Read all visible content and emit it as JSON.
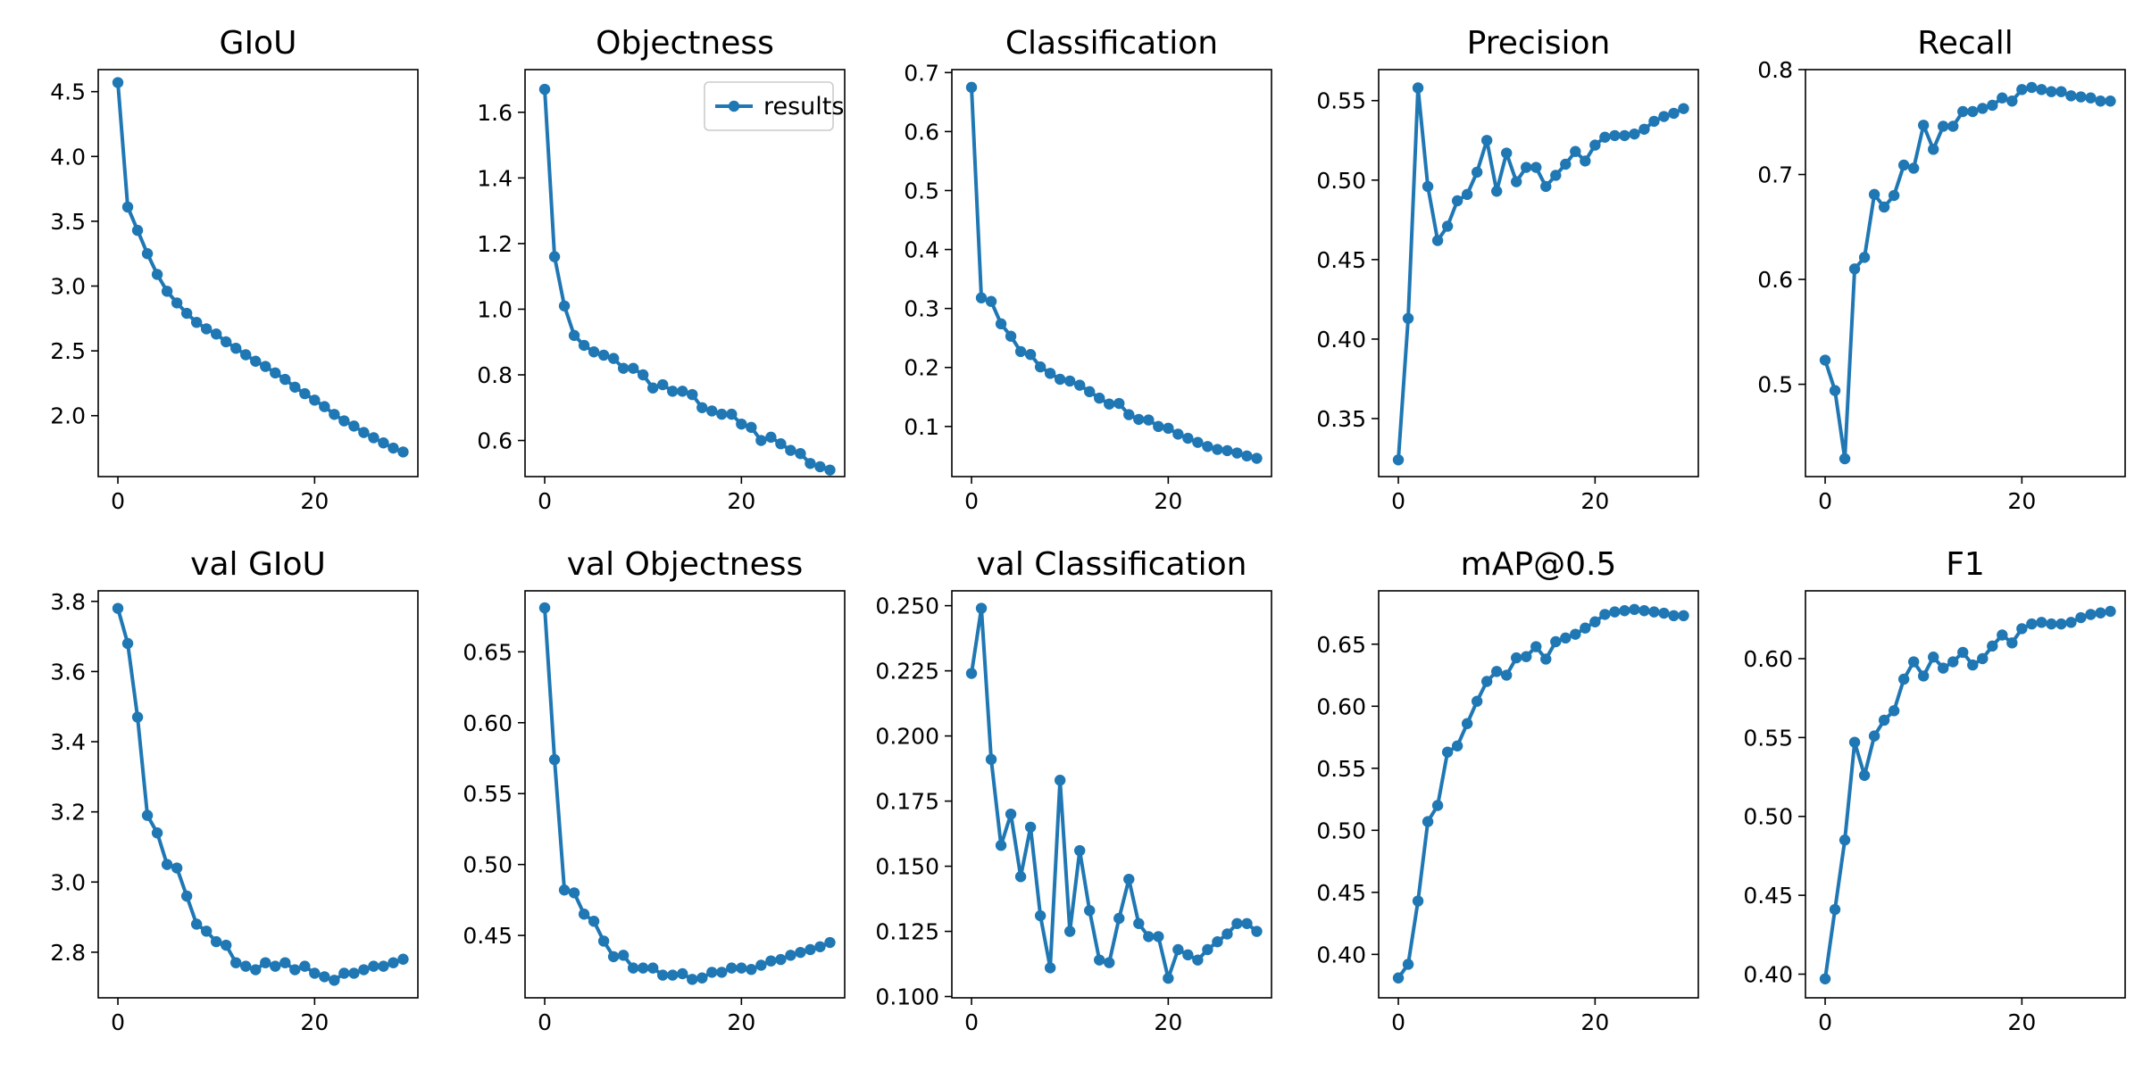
{
  "colors": {
    "series": "#1f77b4",
    "axes": "#000000",
    "legend_border": "#cccccc",
    "background": "#ffffff"
  },
  "chart_data": [
    {
      "type": "line",
      "title": "GIoU",
      "xlabel": "",
      "ylabel": "",
      "xlim": [
        -2,
        30.5
      ],
      "ylim": [
        1.53,
        4.67
      ],
      "xticks": [
        0,
        20
      ],
      "yticks": [
        2.0,
        2.5,
        3.0,
        3.5,
        4.0,
        4.5
      ],
      "ytick_decimals": 1,
      "x": [
        0,
        1,
        2,
        3,
        4,
        5,
        6,
        7,
        8,
        9,
        10,
        11,
        12,
        13,
        14,
        15,
        16,
        17,
        18,
        19,
        20,
        21,
        22,
        23,
        24,
        25,
        26,
        27,
        28,
        29
      ],
      "series": [
        {
          "values": [
            4.57,
            3.61,
            3.43,
            3.25,
            3.09,
            2.96,
            2.87,
            2.79,
            2.72,
            2.67,
            2.63,
            2.57,
            2.52,
            2.47,
            2.42,
            2.38,
            2.33,
            2.28,
            2.22,
            2.17,
            2.12,
            2.07,
            2.01,
            1.96,
            1.92,
            1.87,
            1.83,
            1.79,
            1.75,
            1.72
          ]
        }
      ]
    },
    {
      "type": "line",
      "title": "Objectness",
      "xlabel": "",
      "ylabel": "",
      "xlim": [
        -2,
        30.5
      ],
      "ylim": [
        0.49,
        1.73
      ],
      "xticks": [
        0,
        20
      ],
      "yticks": [
        0.6,
        0.8,
        1.0,
        1.2,
        1.4,
        1.6
      ],
      "ytick_decimals": 1,
      "legend": {
        "labels": [
          "results"
        ],
        "loc": "upper right"
      },
      "x": [
        0,
        1,
        2,
        3,
        4,
        5,
        6,
        7,
        8,
        9,
        10,
        11,
        12,
        13,
        14,
        15,
        16,
        17,
        18,
        19,
        20,
        21,
        22,
        23,
        24,
        25,
        26,
        27,
        28,
        29
      ],
      "series": [
        {
          "name": "results",
          "values": [
            1.67,
            1.16,
            1.01,
            0.92,
            0.89,
            0.87,
            0.86,
            0.85,
            0.82,
            0.82,
            0.8,
            0.76,
            0.77,
            0.75,
            0.75,
            0.74,
            0.7,
            0.69,
            0.68,
            0.68,
            0.65,
            0.64,
            0.6,
            0.61,
            0.59,
            0.57,
            0.56,
            0.53,
            0.52,
            0.51
          ]
        }
      ]
    },
    {
      "type": "line",
      "title": "Classification",
      "xlabel": "",
      "ylabel": "",
      "xlim": [
        -2,
        30.5
      ],
      "ylim": [
        0.015,
        0.705
      ],
      "xticks": [
        0,
        20
      ],
      "yticks": [
        0.1,
        0.2,
        0.3,
        0.4,
        0.5,
        0.6,
        0.7
      ],
      "ytick_decimals": 1,
      "x": [
        0,
        1,
        2,
        3,
        4,
        5,
        6,
        7,
        8,
        9,
        10,
        11,
        12,
        13,
        14,
        15,
        16,
        17,
        18,
        19,
        20,
        21,
        22,
        23,
        24,
        25,
        26,
        27,
        28,
        29
      ],
      "series": [
        {
          "values": [
            0.675,
            0.318,
            0.312,
            0.274,
            0.253,
            0.227,
            0.222,
            0.201,
            0.19,
            0.18,
            0.177,
            0.17,
            0.159,
            0.148,
            0.138,
            0.139,
            0.12,
            0.112,
            0.111,
            0.1,
            0.097,
            0.087,
            0.08,
            0.073,
            0.066,
            0.061,
            0.059,
            0.055,
            0.05,
            0.046
          ]
        }
      ]
    },
    {
      "type": "line",
      "title": "Precision",
      "xlabel": "",
      "ylabel": "",
      "xlim": [
        -2,
        30.5
      ],
      "ylim": [
        0.3135,
        0.5695
      ],
      "xticks": [
        0,
        20
      ],
      "yticks": [
        0.35,
        0.4,
        0.45,
        0.5,
        0.55
      ],
      "ytick_decimals": 2,
      "x": [
        0,
        1,
        2,
        3,
        4,
        5,
        6,
        7,
        8,
        9,
        10,
        11,
        12,
        13,
        14,
        15,
        16,
        17,
        18,
        19,
        20,
        21,
        22,
        23,
        24,
        25,
        26,
        27,
        28,
        29
      ],
      "series": [
        {
          "values": [
            0.324,
            0.413,
            0.558,
            0.496,
            0.462,
            0.471,
            0.487,
            0.491,
            0.505,
            0.525,
            0.493,
            0.517,
            0.499,
            0.508,
            0.508,
            0.496,
            0.503,
            0.51,
            0.518,
            0.512,
            0.522,
            0.527,
            0.528,
            0.528,
            0.529,
            0.532,
            0.537,
            0.54,
            0.542,
            0.545
          ]
        }
      ]
    },
    {
      "type": "line",
      "title": "Recall",
      "xlabel": "",
      "ylabel": "",
      "xlim": [
        -2,
        30.5
      ],
      "ylim": [
        0.412,
        0.8
      ],
      "xticks": [
        0,
        20
      ],
      "yticks": [
        0.5,
        0.6,
        0.7,
        0.8
      ],
      "ytick_decimals": 1,
      "x": [
        0,
        1,
        2,
        3,
        4,
        5,
        6,
        7,
        8,
        9,
        10,
        11,
        12,
        13,
        14,
        15,
        16,
        17,
        18,
        19,
        20,
        21,
        22,
        23,
        24,
        25,
        26,
        27,
        28,
        29
      ],
      "series": [
        {
          "values": [
            0.523,
            0.494,
            0.429,
            0.61,
            0.621,
            0.681,
            0.669,
            0.68,
            0.709,
            0.706,
            0.747,
            0.724,
            0.746,
            0.746,
            0.76,
            0.76,
            0.763,
            0.766,
            0.773,
            0.77,
            0.781,
            0.783,
            0.781,
            0.779,
            0.779,
            0.775,
            0.774,
            0.773,
            0.77,
            0.77
          ]
        }
      ]
    },
    {
      "type": "line",
      "title": "val GIoU",
      "xlabel": "",
      "ylabel": "",
      "xlim": [
        -2,
        30.5
      ],
      "ylim": [
        2.67,
        3.83
      ],
      "xticks": [
        0,
        20
      ],
      "yticks": [
        2.8,
        3.0,
        3.2,
        3.4,
        3.6,
        3.8
      ],
      "ytick_decimals": 1,
      "x": [
        0,
        1,
        2,
        3,
        4,
        5,
        6,
        7,
        8,
        9,
        10,
        11,
        12,
        13,
        14,
        15,
        16,
        17,
        18,
        19,
        20,
        21,
        22,
        23,
        24,
        25,
        26,
        27,
        28,
        29
      ],
      "series": [
        {
          "values": [
            3.78,
            3.68,
            3.47,
            3.19,
            3.14,
            3.05,
            3.04,
            2.96,
            2.88,
            2.86,
            2.83,
            2.82,
            2.77,
            2.76,
            2.75,
            2.77,
            2.76,
            2.77,
            2.75,
            2.76,
            2.74,
            2.73,
            2.72,
            2.74,
            2.74,
            2.75,
            2.76,
            2.76,
            2.77,
            2.78
          ]
        }
      ]
    },
    {
      "type": "line",
      "title": "val Objectness",
      "xlabel": "",
      "ylabel": "",
      "xlim": [
        -2,
        30.5
      ],
      "ylim": [
        0.406,
        0.693
      ],
      "xticks": [
        0,
        20
      ],
      "yticks": [
        0.45,
        0.5,
        0.55,
        0.6,
        0.65
      ],
      "ytick_decimals": 2,
      "x": [
        0,
        1,
        2,
        3,
        4,
        5,
        6,
        7,
        8,
        9,
        10,
        11,
        12,
        13,
        14,
        15,
        16,
        17,
        18,
        19,
        20,
        21,
        22,
        23,
        24,
        25,
        26,
        27,
        28,
        29
      ],
      "series": [
        {
          "values": [
            0.681,
            0.574,
            0.482,
            0.48,
            0.465,
            0.46,
            0.446,
            0.435,
            0.436,
            0.427,
            0.427,
            0.427,
            0.422,
            0.422,
            0.423,
            0.419,
            0.42,
            0.424,
            0.424,
            0.427,
            0.427,
            0.426,
            0.429,
            0.432,
            0.433,
            0.436,
            0.438,
            0.44,
            0.442,
            0.445
          ]
        }
      ]
    },
    {
      "type": "line",
      "title": "val Classification",
      "xlabel": "",
      "ylabel": "",
      "xlim": [
        -2,
        30.5
      ],
      "ylim": [
        0.0995,
        0.2557
      ],
      "xticks": [
        0,
        20
      ],
      "yticks": [
        0.1,
        0.125,
        0.15,
        0.175,
        0.2,
        0.225,
        0.25
      ],
      "ytick_decimals": 3,
      "x": [
        0,
        1,
        2,
        3,
        4,
        5,
        6,
        7,
        8,
        9,
        10,
        11,
        12,
        13,
        14,
        15,
        16,
        17,
        18,
        19,
        20,
        21,
        22,
        23,
        24,
        25,
        26,
        27,
        28,
        29
      ],
      "series": [
        {
          "values": [
            0.224,
            0.249,
            0.191,
            0.158,
            0.17,
            0.146,
            0.165,
            0.131,
            0.111,
            0.183,
            0.125,
            0.156,
            0.133,
            0.114,
            0.113,
            0.13,
            0.145,
            0.128,
            0.123,
            0.123,
            0.107,
            0.118,
            0.116,
            0.114,
            0.118,
            0.121,
            0.124,
            0.128,
            0.128,
            0.125
          ]
        }
      ]
    },
    {
      "type": "line",
      "title": "mAP@0.5",
      "xlabel": "",
      "ylabel": "",
      "xlim": [
        -2,
        30.5
      ],
      "ylim": [
        0.365,
        0.693
      ],
      "xticks": [
        0,
        20
      ],
      "yticks": [
        0.4,
        0.45,
        0.5,
        0.55,
        0.6,
        0.65
      ],
      "ytick_decimals": 2,
      "x": [
        0,
        1,
        2,
        3,
        4,
        5,
        6,
        7,
        8,
        9,
        10,
        11,
        12,
        13,
        14,
        15,
        16,
        17,
        18,
        19,
        20,
        21,
        22,
        23,
        24,
        25,
        26,
        27,
        28,
        29
      ],
      "series": [
        {
          "values": [
            0.381,
            0.392,
            0.443,
            0.507,
            0.52,
            0.563,
            0.568,
            0.586,
            0.604,
            0.62,
            0.628,
            0.625,
            0.639,
            0.64,
            0.648,
            0.638,
            0.652,
            0.655,
            0.658,
            0.663,
            0.668,
            0.674,
            0.676,
            0.677,
            0.678,
            0.677,
            0.676,
            0.675,
            0.673,
            0.673
          ]
        }
      ]
    },
    {
      "type": "line",
      "title": "F1",
      "xlabel": "",
      "ylabel": "",
      "xlim": [
        -2,
        30.5
      ],
      "ylim": [
        0.385,
        0.643
      ],
      "xticks": [
        0,
        20
      ],
      "yticks": [
        0.4,
        0.45,
        0.5,
        0.55,
        0.6
      ],
      "ytick_decimals": 2,
      "x": [
        0,
        1,
        2,
        3,
        4,
        5,
        6,
        7,
        8,
        9,
        10,
        11,
        12,
        13,
        14,
        15,
        16,
        17,
        18,
        19,
        20,
        21,
        22,
        23,
        24,
        25,
        26,
        27,
        28,
        29
      ],
      "series": [
        {
          "values": [
            0.397,
            0.441,
            0.485,
            0.547,
            0.526,
            0.551,
            0.561,
            0.567,
            0.587,
            0.598,
            0.589,
            0.601,
            0.594,
            0.598,
            0.604,
            0.596,
            0.6,
            0.608,
            0.615,
            0.61,
            0.619,
            0.622,
            0.623,
            0.622,
            0.622,
            0.623,
            0.626,
            0.628,
            0.629,
            0.63
          ]
        }
      ]
    }
  ]
}
